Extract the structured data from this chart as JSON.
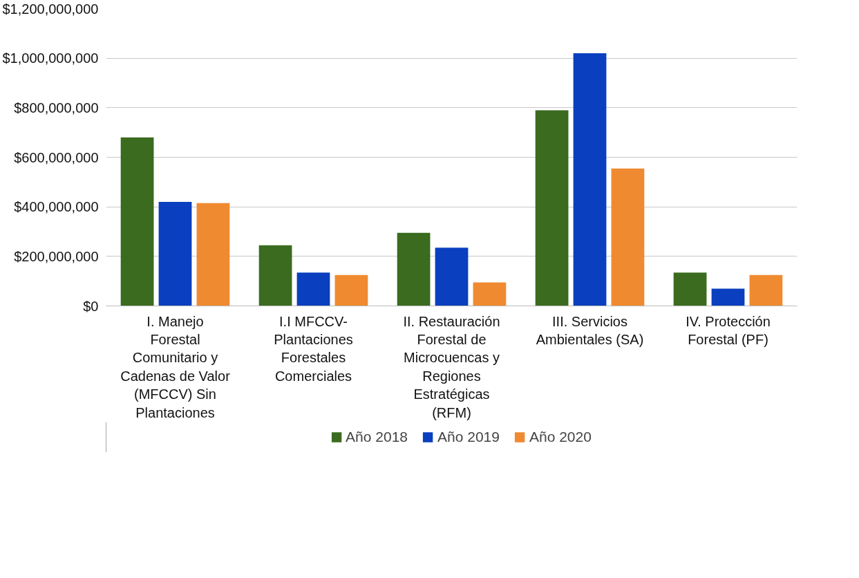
{
  "chart_data": {
    "type": "bar",
    "categories": [
      "I. Manejo Forestal Comunitario y Cadenas de Valor (MFCCV) Sin Plantaciones",
      "I.I MFCCV-Plantaciones Forestales Comerciales",
      "II. Restauración Forestal de Microcuencas y Regiones Estratégicas (RFM)",
      "III. Servicios Ambientales (SA)",
      "IV. Protección Forestal (PF)"
    ],
    "series": [
      {
        "name": "Año 2018",
        "color": "#3a6b1e",
        "values": [
          680000000,
          245000000,
          295000000,
          790000000,
          135000000
        ]
      },
      {
        "name": "Año 2019",
        "color": "#0a3fbf",
        "values": [
          420000000,
          135000000,
          235000000,
          1020000000,
          70000000
        ]
      },
      {
        "name": "Año 2020",
        "color": "#f08a30",
        "values": [
          415000000,
          125000000,
          95000000,
          555000000,
          125000000
        ]
      }
    ],
    "ylim": [
      0,
      1200000000
    ],
    "yticks": [
      {
        "value": 0,
        "label": "$0"
      },
      {
        "value": 200000000,
        "label": "$200,000,000"
      },
      {
        "value": 400000000,
        "label": "$400,000,000"
      },
      {
        "value": 600000000,
        "label": "$600,000,000"
      },
      {
        "value": 800000000,
        "label": "$800,000,000"
      },
      {
        "value": 1000000000,
        "label": "$1,000,000,000"
      },
      {
        "value": 1200000000,
        "label": "$1,200,000,000"
      }
    ],
    "grid": "y",
    "legend": "bottom"
  }
}
